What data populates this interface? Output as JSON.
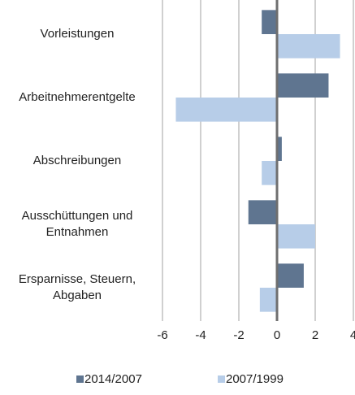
{
  "chart_data": {
    "type": "hbar",
    "categories": [
      "Vorleistungen",
      "Arbeitnehmerentgelte",
      "Abschreibungen",
      "Ausschüttungen und\nEntnahmen",
      "Ersparnisse, Steuern,\nAbgaben"
    ],
    "series": [
      {
        "name": "2014/2007",
        "color": "#5f7590",
        "values": [
          -0.8,
          2.7,
          0.25,
          -1.5,
          1.4
        ]
      },
      {
        "name": "2007/1999",
        "color": "#b7cde8",
        "values": [
          3.3,
          -5.3,
          -0.8,
          2.0,
          -0.9
        ]
      }
    ],
    "xlim": [
      -6,
      4
    ],
    "xticks": [
      -6,
      -4,
      -2,
      0,
      2,
      4
    ],
    "grid": true
  }
}
